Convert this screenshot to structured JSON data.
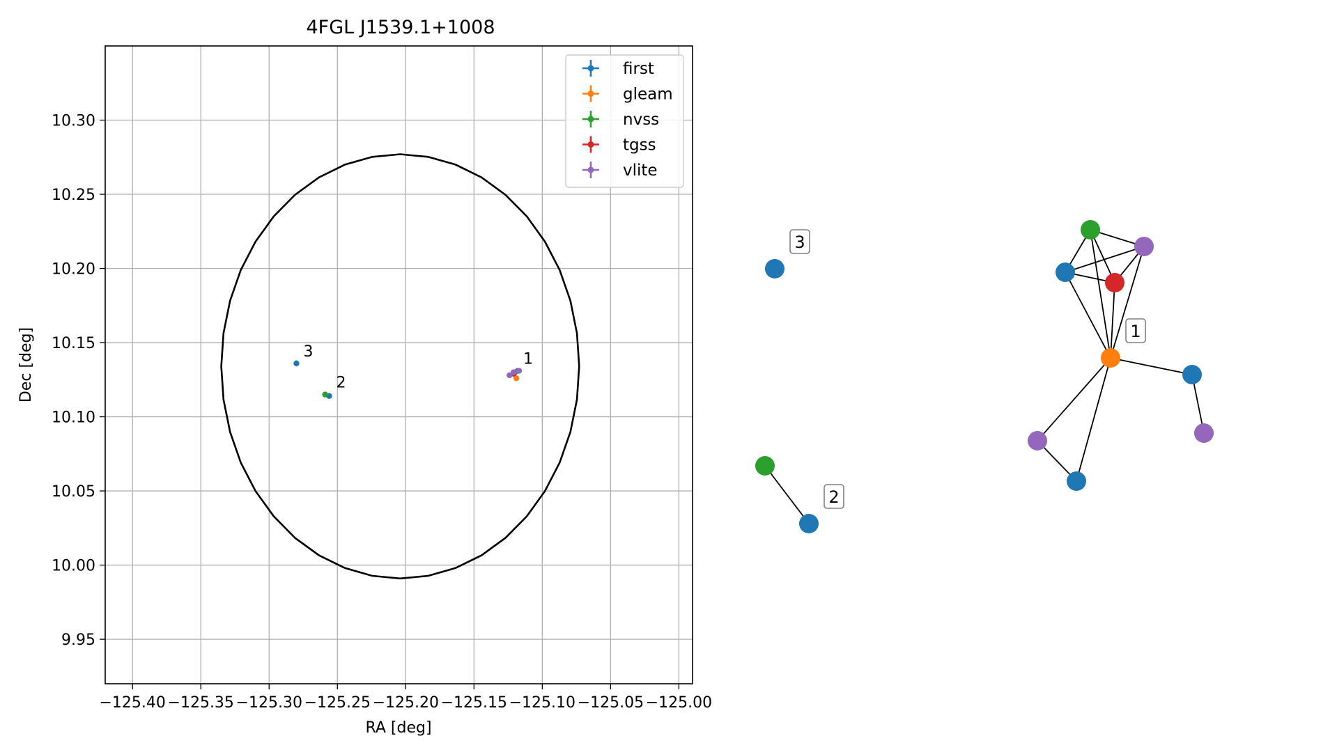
{
  "chart_data": [
    {
      "type": "scatter",
      "title": "4FGL J1539.1+1008",
      "xlabel": "RA [deg]",
      "ylabel": "Dec [deg]",
      "xlim": [
        -125.42,
        -124.99
      ],
      "ylim": [
        9.92,
        10.35
      ],
      "xticks": [
        -125.4,
        -125.35,
        -125.3,
        -125.25,
        -125.2,
        -125.15,
        -125.1,
        -125.05,
        -125.0
      ],
      "xtick_labels": [
        "−125.40",
        "−125.35",
        "−125.30",
        "−125.25",
        "−125.20",
        "−125.15",
        "−125.10",
        "−125.05",
        "−125.00"
      ],
      "yticks": [
        9.95,
        10.0,
        10.05,
        10.1,
        10.15,
        10.2,
        10.25,
        10.3
      ],
      "ytick_labels": [
        "9.95",
        "10.00",
        "10.05",
        "10.10",
        "10.15",
        "10.20",
        "10.25",
        "10.30"
      ],
      "grid": true,
      "legend_position": "top-right",
      "ellipse": {
        "center": [
          -125.204,
          10.134
        ],
        "semi_x": 0.131,
        "semi_y": 0.143,
        "color": "#000000"
      },
      "series": [
        {
          "name": "first",
          "color": "#1f77b4",
          "points": [
            [
              -125.28,
              10.136
            ],
            [
              -125.256,
              10.114
            ],
            [
              -125.118,
              10.131
            ]
          ]
        },
        {
          "name": "gleam",
          "color": "#ff7f0e",
          "points": [
            [
              -125.119,
              10.126
            ]
          ]
        },
        {
          "name": "nvss",
          "color": "#2ca02c",
          "points": [
            [
              -125.259,
              10.115
            ],
            [
              -125.12,
              10.13
            ]
          ]
        },
        {
          "name": "tgss",
          "color": "#d62728",
          "points": [
            [
              -125.121,
              10.129
            ]
          ]
        },
        {
          "name": "vlite",
          "color": "#9467bd",
          "points": [
            [
              -125.124,
              10.128
            ],
            [
              -125.121,
              10.13
            ],
            [
              -125.117,
              10.131
            ]
          ]
        }
      ],
      "annotations": [
        {
          "text": "1",
          "x": -125.119,
          "y": 10.131
        },
        {
          "text": "2",
          "x": -125.256,
          "y": 10.115
        },
        {
          "text": "3",
          "x": -125.28,
          "y": 10.136
        }
      ]
    },
    {
      "type": "network",
      "nodes": [
        {
          "id": "c3",
          "color": "#1f77b4",
          "label": "3"
        },
        {
          "id": "n2g",
          "color": "#2ca02c"
        },
        {
          "id": "n2b",
          "color": "#1f77b4",
          "label": "2"
        },
        {
          "id": "hub",
          "color": "#ff7f0e",
          "label": "1"
        },
        {
          "id": "g1",
          "color": "#2ca02c"
        },
        {
          "id": "p1",
          "color": "#9467bd"
        },
        {
          "id": "b1",
          "color": "#1f77b4"
        },
        {
          "id": "r1",
          "color": "#d62728"
        },
        {
          "id": "b2",
          "color": "#1f77b4"
        },
        {
          "id": "p2",
          "color": "#9467bd"
        },
        {
          "id": "p3",
          "color": "#9467bd"
        },
        {
          "id": "b3",
          "color": "#1f77b4"
        }
      ],
      "edges": [
        [
          "n2g",
          "n2b"
        ],
        [
          "g1",
          "b1"
        ],
        [
          "g1",
          "r1"
        ],
        [
          "g1",
          "p1"
        ],
        [
          "g1",
          "hub"
        ],
        [
          "b1",
          "r1"
        ],
        [
          "b1",
          "p1"
        ],
        [
          "b1",
          "hub"
        ],
        [
          "r1",
          "p1"
        ],
        [
          "r1",
          "hub"
        ],
        [
          "p1",
          "hub"
        ],
        [
          "hub",
          "b2"
        ],
        [
          "b2",
          "p2"
        ],
        [
          "hub",
          "p3"
        ],
        [
          "hub",
          "b3"
        ],
        [
          "p3",
          "b3"
        ]
      ]
    }
  ]
}
